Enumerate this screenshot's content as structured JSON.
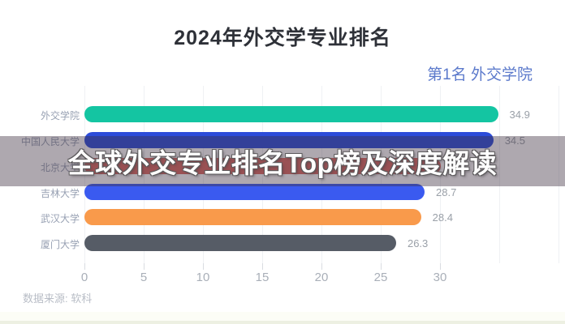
{
  "title": "2024年外交学专业排名",
  "annotation": "第1名 外交学院",
  "overlay_headline": "全球外交专业排名Top榜及深度解读",
  "source_note": "数据来源: 软科",
  "chart_data": {
    "type": "bar",
    "orientation": "horizontal",
    "title": "2024年外交学专业排名",
    "categories": [
      "外交学院",
      "中国人民大学",
      "北京大学",
      "吉林大学",
      "武汉大学",
      "厦门大学"
    ],
    "values": [
      34.9,
      34.5,
      30.1,
      28.7,
      28.4,
      26.3
    ],
    "value_labels": [
      "34.9",
      "34.5",
      "",
      "28.7",
      "28.4",
      "26.3"
    ],
    "values_estimated_from_pixels": [
      false,
      false,
      true,
      false,
      false,
      false
    ],
    "bar_colors": [
      "#14c5a2",
      "#2c4cd9",
      "#dd6a63",
      "#3a5af0",
      "#f99a4b",
      "#565c66"
    ],
    "x_ticks": [
      0,
      5,
      10,
      15,
      20,
      25,
      30
    ],
    "xlim": [
      0,
      40
    ],
    "grid": true,
    "annotation": "第1名 外交学院",
    "source": "数据来源: 软科"
  },
  "colors": {
    "title": "#2e3138",
    "annotation_blue": "#5b79cb",
    "category_label": "#98a1b3",
    "value_label": "#9aa0a8",
    "axis_label": "#a9afb8",
    "gridline": "#eff1f4",
    "overlay_bg": "rgba(62,48,64,0.42)",
    "overlay_text": "#ffffff",
    "source": "#b8bdc6",
    "bottom_strip": "#fcfdf6",
    "bottom_edge": "#edf0e2",
    "background": "#ffffff"
  }
}
